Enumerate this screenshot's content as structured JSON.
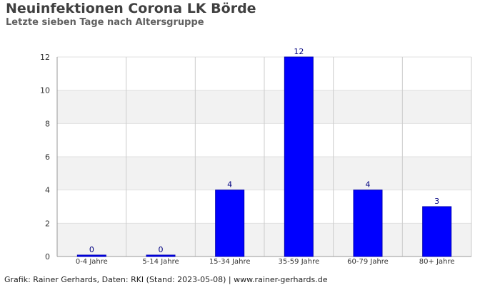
{
  "title": "Neuinfektionen Corona LK Börde",
  "subtitle": "Letzte sieben Tage nach Altersgruppe",
  "footer": "Grafik: Rainer Gerhards, Daten: RKI (Stand: 2023-05-08) | www.rainer-gerhards.de",
  "colors": {
    "bar": "#0000ff",
    "bar_label": "#000080",
    "band": "#f2f2f2",
    "grid": "#cccccc",
    "text": "#404040"
  },
  "chart_data": {
    "type": "bar",
    "title": "Neuinfektionen Corona LK Börde",
    "subtitle": "Letzte sieben Tage nach Altersgruppe",
    "categories": [
      "0-4 Jahre",
      "5-14 Jahre",
      "15-34 Jahre",
      "35-59 Jahre",
      "60-79 Jahre",
      "80+ Jahre"
    ],
    "values": [
      0,
      0,
      4,
      12,
      4,
      3
    ],
    "xlabel": "",
    "ylabel": "",
    "ylim": [
      0,
      12
    ],
    "yticks": [
      0,
      2,
      4,
      6,
      8,
      10,
      12
    ],
    "grid": true,
    "legend": "none"
  }
}
